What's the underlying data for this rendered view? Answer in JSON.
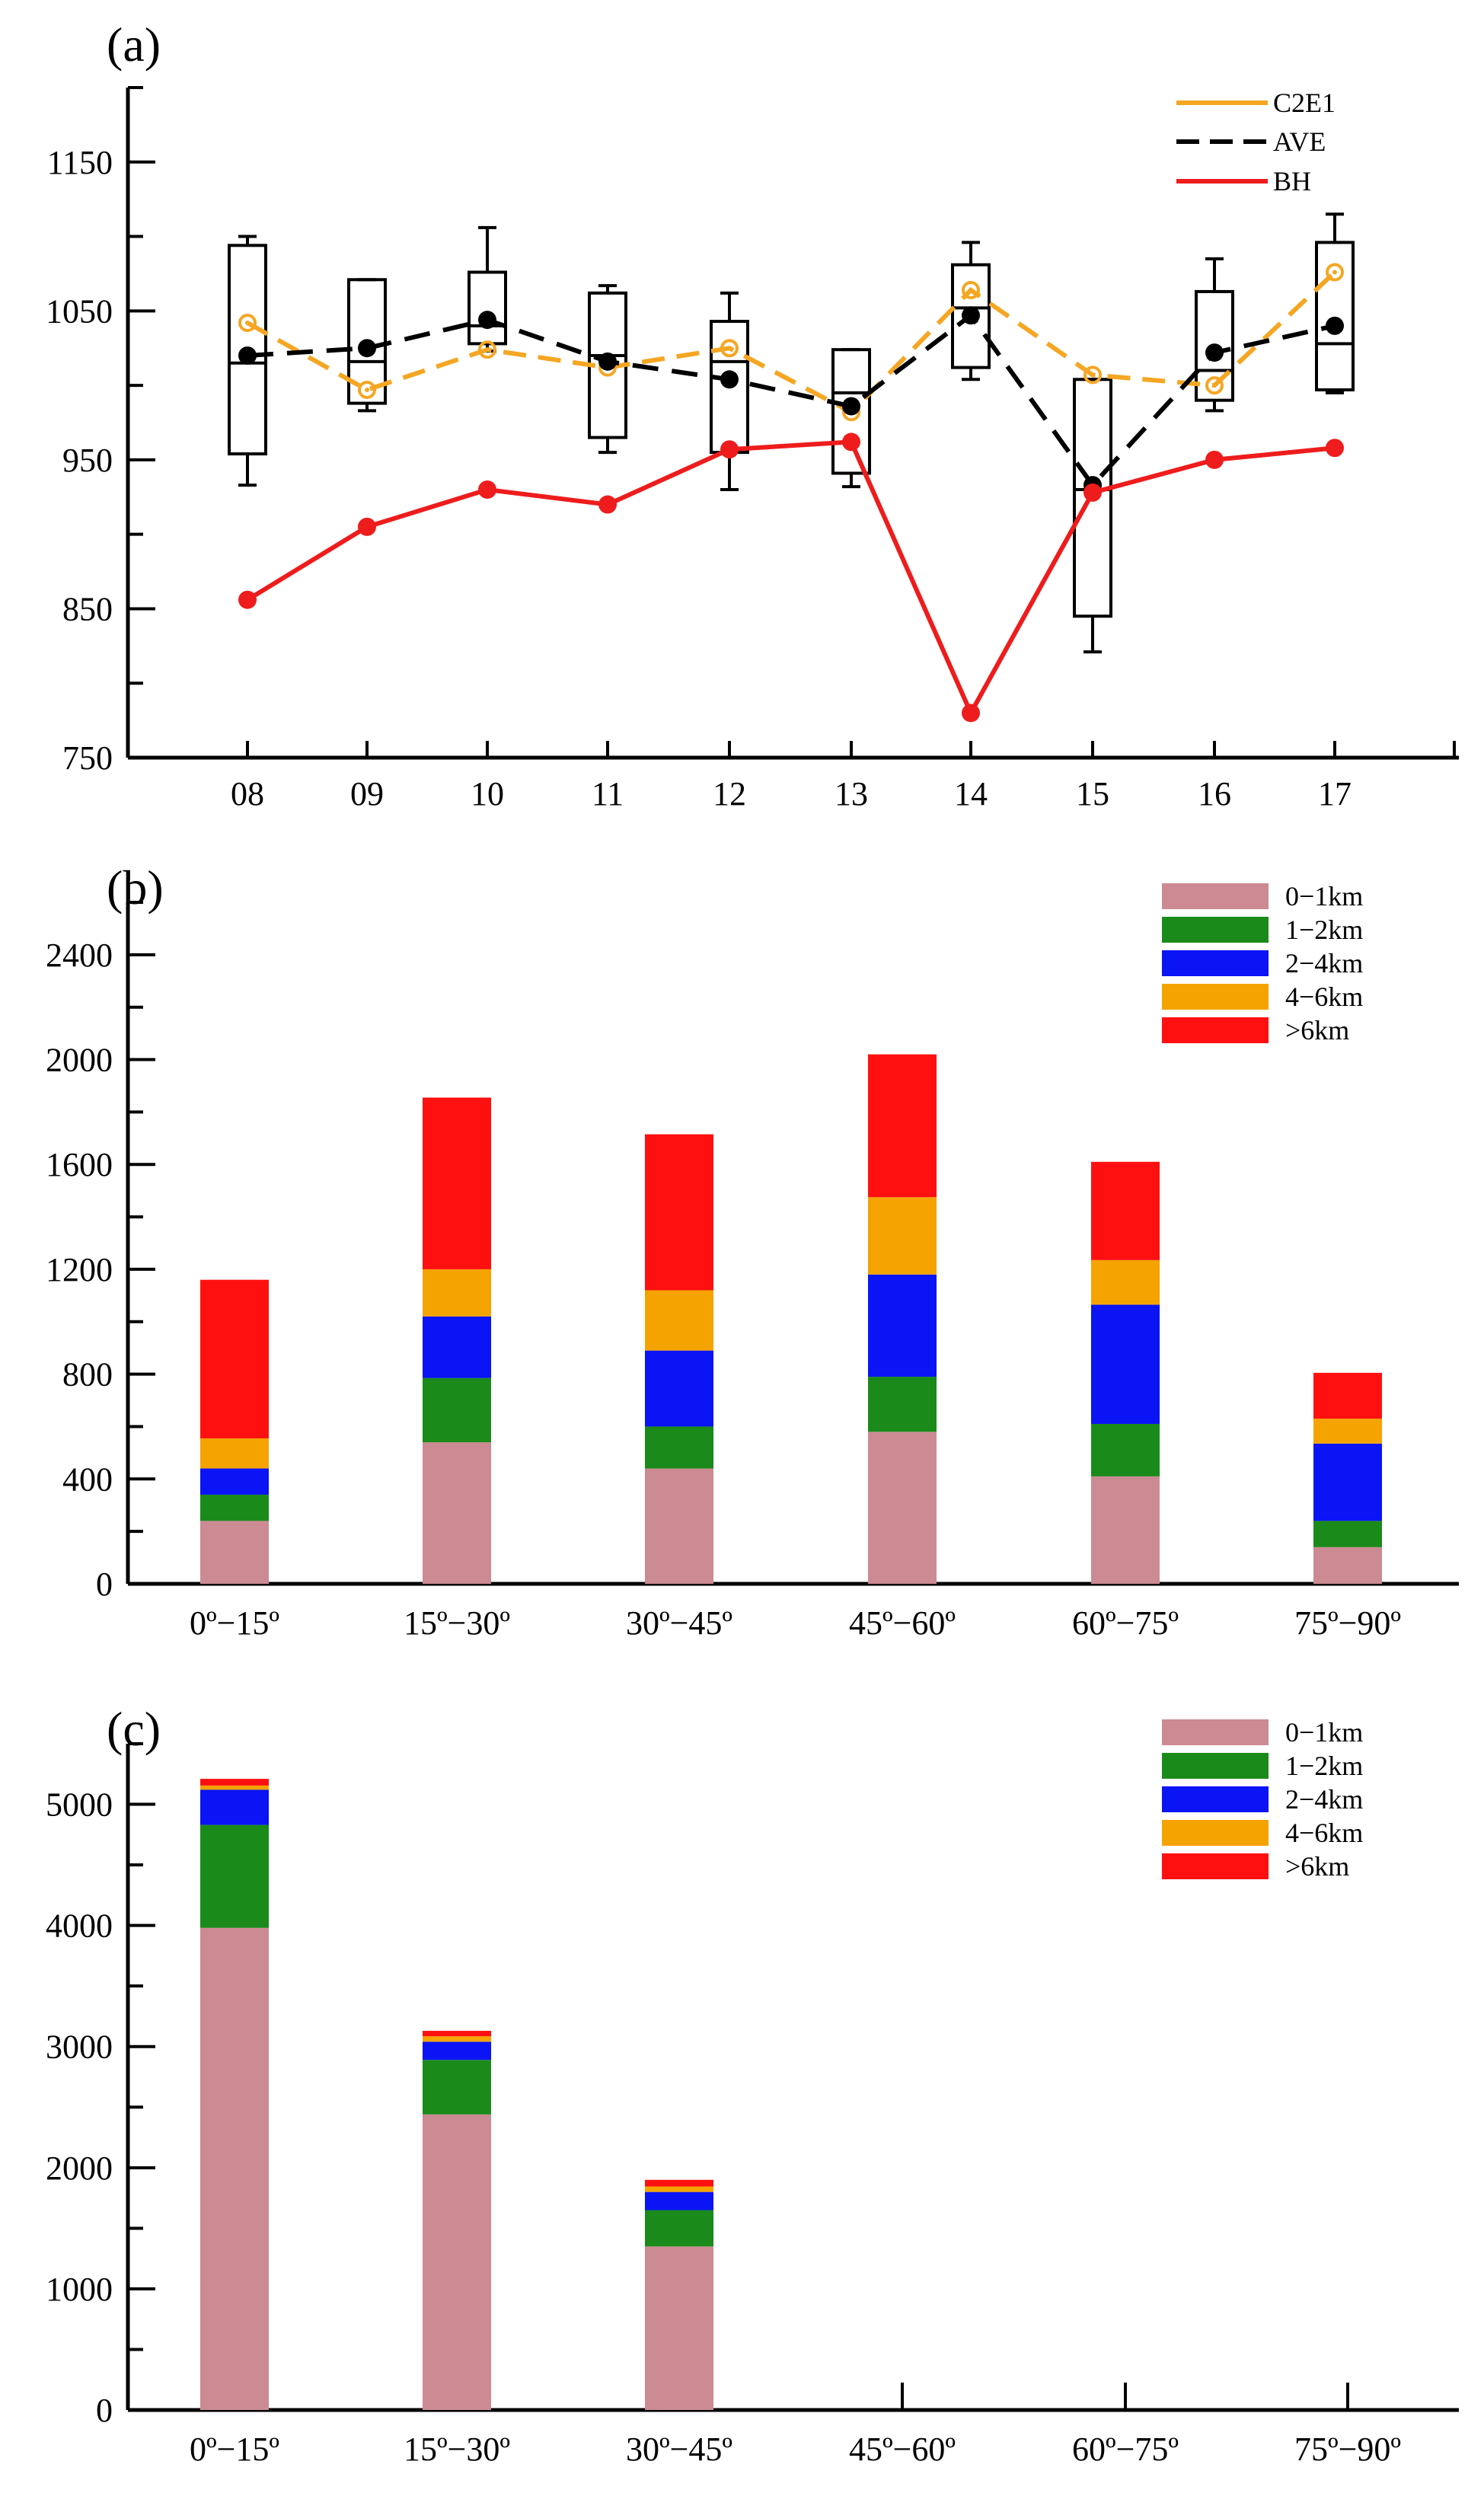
{
  "chart_data": [
    {
      "panel": "(a)",
      "type": "line",
      "x_categories": [
        "08",
        "09",
        "10",
        "11",
        "12",
        "13",
        "14",
        "15",
        "16",
        "17"
      ],
      "ylim": [
        750,
        1200
      ],
      "yticks": [
        750,
        850,
        950,
        1050,
        1150
      ],
      "legend": [
        "C2E1",
        "AVE",
        "BH"
      ],
      "series": [
        {
          "name": "C2E1",
          "color": "#f5a623",
          "style": "dashed",
          "marker": "open-circle",
          "values": [
            1042,
            997,
            1024,
            1012,
            1025,
            982,
            1064,
            1007,
            1000,
            1076
          ]
        },
        {
          "name": "AVE",
          "color": "#000000",
          "style": "dashed",
          "marker": "filled-circle",
          "values": [
            1020,
            1025,
            1044,
            1016,
            1004,
            986,
            1047,
            933,
            1022,
            1040
          ]
        },
        {
          "name": "BH",
          "color": "#ee1c1c",
          "style": "solid",
          "marker": "filled-circle",
          "values": [
            856,
            905,
            930,
            920,
            957,
            962,
            780,
            928,
            950,
            958
          ]
        }
      ],
      "boxes": [
        {
          "whisker_low": 933,
          "q1": 954,
          "median": 1015,
          "q3": 1094,
          "whisker_high": 1100
        },
        {
          "whisker_low": 983,
          "q1": 988,
          "median": 1016,
          "q3": 1071,
          "whisker_high": 1071
        },
        {
          "whisker_low": 1023,
          "q1": 1028,
          "median": 1040,
          "q3": 1076,
          "whisker_high": 1106
        },
        {
          "whisker_low": 955,
          "q1": 965,
          "median": 1020,
          "q3": 1062,
          "whisker_high": 1067
        },
        {
          "whisker_low": 930,
          "q1": 955,
          "median": 1016,
          "q3": 1043,
          "whisker_high": 1062
        },
        {
          "whisker_low": 932,
          "q1": 941,
          "median": 995,
          "q3": 1024,
          "whisker_high": 1024
        },
        {
          "whisker_low": 1004,
          "q1": 1012,
          "median": 1052,
          "q3": 1081,
          "whisker_high": 1096
        },
        {
          "whisker_low": 821,
          "q1": 845,
          "median": 930,
          "q3": 1004,
          "whisker_high": 1004
        },
        {
          "whisker_low": 983,
          "q1": 990,
          "median": 1010,
          "q3": 1063,
          "whisker_high": 1085
        },
        {
          "whisker_low": 995,
          "q1": 997,
          "median": 1028,
          "q3": 1096,
          "whisker_high": 1115
        }
      ]
    },
    {
      "panel": "(b)",
      "type": "bar",
      "stacked": true,
      "categories": [
        "0º−15º",
        "15º−30º",
        "30º−45º",
        "45º−60º",
        "60º−75º",
        "75º−90º"
      ],
      "ylim": [
        0,
        2600
      ],
      "yticks": [
        0,
        400,
        800,
        1200,
        1600,
        2000,
        2400
      ],
      "series": [
        {
          "name": "0−1km",
          "color": "#cc8a93",
          "values": [
            240,
            540,
            440,
            580,
            410,
            140
          ]
        },
        {
          "name": "1−2km",
          "color": "#1a8a1a",
          "values": [
            100,
            245,
            160,
            210,
            200,
            100
          ]
        },
        {
          "name": "2−4km",
          "color": "#0a14f5",
          "values": [
            100,
            235,
            290,
            390,
            455,
            295
          ]
        },
        {
          "name": "4−6km",
          "color": "#f5a300",
          "values": [
            115,
            180,
            230,
            295,
            170,
            95
          ]
        },
        {
          "name": ">6km",
          "color": "#ff1010",
          "values": [
            605,
            655,
            595,
            545,
            375,
            175
          ]
        }
      ]
    },
    {
      "panel": "(c)",
      "type": "bar",
      "stacked": true,
      "categories": [
        "0º−15º",
        "15º−30º",
        "30º−45º",
        "45º−60º",
        "60º−75º",
        "75º−90º"
      ],
      "ylim": [
        0,
        5500
      ],
      "yticks": [
        0,
        1000,
        2000,
        3000,
        4000,
        5000
      ],
      "series": [
        {
          "name": "0−1km",
          "color": "#cc8a93",
          "values": [
            3980,
            2440,
            1350,
            0,
            0,
            0
          ]
        },
        {
          "name": "1−2km",
          "color": "#1a8a1a",
          "values": [
            850,
            450,
            300,
            0,
            0,
            0
          ]
        },
        {
          "name": "2−4km",
          "color": "#0a14f5",
          "values": [
            290,
            150,
            150,
            0,
            0,
            0
          ]
        },
        {
          "name": "4−6km",
          "color": "#f5a300",
          "values": [
            35,
            45,
            45,
            0,
            0,
            0
          ]
        },
        {
          "name": ">6km",
          "color": "#ff1010",
          "values": [
            55,
            45,
            55,
            0,
            0,
            0
          ]
        }
      ]
    }
  ]
}
